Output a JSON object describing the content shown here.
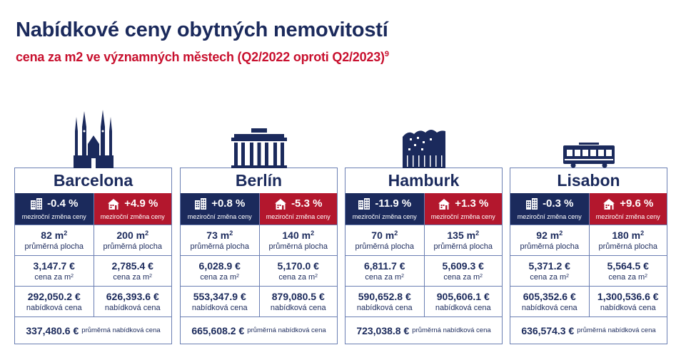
{
  "header": {
    "title": "Nabídkové ceny obytných nemovitostí",
    "subtitle": "cena za m2 ve významných městech (Q2/2022 oproti Q2/2023)",
    "footnote": "9"
  },
  "labels": {
    "change": "meziroční změna ceny",
    "area": "průměrná plocha",
    "price_m2": "cena za m",
    "offer_price": "nabídková cena",
    "avg_offer": "průměrná nabídková cena",
    "m2_unit": "m",
    "sq": "2"
  },
  "colors": {
    "navy": "#1b2a5c",
    "red": "#b3172d",
    "border": "#6b7fb3"
  },
  "cities": [
    {
      "name": "Barcelona",
      "icon": "sagrada-familia-icon",
      "apt": {
        "change": "-0.4 %",
        "area": "82",
        "price_m2": "3,147.7 €",
        "offer": "292,050.2 €"
      },
      "house": {
        "change": "+4.9 %",
        "area": "200",
        "price_m2": "2,785.4 €",
        "offer": "626,393.6 €"
      },
      "avg_offer": "337,480.6 €"
    },
    {
      "name": "Berlín",
      "icon": "brandenburg-gate-icon",
      "apt": {
        "change": "+0.8 %",
        "area": "73",
        "price_m2": "6,028.9 €",
        "offer": "553,347.9 €"
      },
      "house": {
        "change": "-5.3 %",
        "area": "140",
        "price_m2": "5,170.0 €",
        "offer": "879,080.5 €"
      },
      "avg_offer": "665,608.2 €"
    },
    {
      "name": "Hamburk",
      "icon": "elbphilharmonie-icon",
      "apt": {
        "change": "-11.9 %",
        "area": "70",
        "price_m2": "6,811.7 €",
        "offer": "590,652.8 €"
      },
      "house": {
        "change": "+1.3 %",
        "area": "135",
        "price_m2": "5,609.3 €",
        "offer": "905,606.1 €"
      },
      "avg_offer": "723,038.8 €"
    },
    {
      "name": "Lisabon",
      "icon": "tram-icon",
      "apt": {
        "change": "-0.3 %",
        "area": "92",
        "price_m2": "5,371.2 €",
        "offer": "605,352.6 €"
      },
      "house": {
        "change": "+9.6 %",
        "area": "180",
        "price_m2": "5,564.5 €",
        "offer": "1,300,536.6 €"
      },
      "avg_offer": "636,574.3 €"
    }
  ]
}
